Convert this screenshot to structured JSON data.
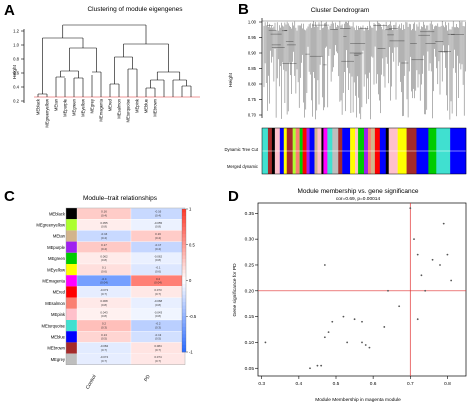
{
  "panels": {
    "A": {
      "letter": "A",
      "title": "Clustering of module eigengenes",
      "ylabel": "Height",
      "yticks": [
        "0.2",
        "0.4",
        "0.6",
        "0.8",
        "1.0",
        "1.2"
      ],
      "leaves": [
        "MEblack",
        "MEgreenyellow",
        "MEtan",
        "MEpurple",
        "MEgreen",
        "MEyellow",
        "MEgrey",
        "MEmagenta",
        "MEred",
        "MEsalmon",
        "MEturquoise",
        "MEpink",
        "MEblue",
        "MEbrown"
      ]
    },
    "B": {
      "letter": "B",
      "title": "Cluster Dendrogram",
      "ylabel": "Height",
      "yticks": [
        "0.70",
        "0.75",
        "0.80",
        "0.85",
        "0.90",
        "0.95",
        "1.00"
      ],
      "row1": "Dynamic Tree Cut",
      "row2": "Merged dynamic"
    },
    "C": {
      "letter": "C",
      "title": "Module–trait relationships",
      "columns": [
        "Control",
        "PD"
      ],
      "colorbar_ticks": [
        "1",
        "0.5",
        "0",
        "-0.5",
        "-1"
      ],
      "rows": [
        {
          "name": "MEblack",
          "color": "#000000",
          "c1": "0.16",
          "p1": "(0.4)",
          "c2": "-0.16",
          "p2": "(0.4)"
        },
        {
          "name": "MEgreenyellow",
          "color": "#adff2f",
          "c1": "0.055",
          "p1": "(0.8)",
          "c2": "-0.055",
          "p2": "(0.8)"
        },
        {
          "name": "MEtan",
          "color": "#d2b48c",
          "c1": "-0.16",
          "p1": "(0.4)",
          "c2": "0.16",
          "p2": "(0.4)"
        },
        {
          "name": "MEpurple",
          "color": "#a020f0",
          "c1": "0.17",
          "p1": "(0.4)",
          "c2": "-0.17",
          "p2": "(0.4)"
        },
        {
          "name": "MEgreen",
          "color": "#00cc00",
          "c1": "0.062",
          "p1": "(0.8)",
          "c2": "-0.062",
          "p2": "(0.8)"
        },
        {
          "name": "MEyellow",
          "color": "#ffff00",
          "c1": "0.1",
          "p1": "(0.6)",
          "c2": "-0.1",
          "p2": "(0.6)"
        },
        {
          "name": "MEmagenta",
          "color": "#ff00ff",
          "c1": "-0.4",
          "p1": "(0.04)",
          "c2": "0.4",
          "p2": "(0.04)"
        },
        {
          "name": "MEred",
          "color": "#ff0000",
          "c1": "-0.073",
          "p1": "(0.7)",
          "c2": "0.073",
          "p2": "(0.7)"
        },
        {
          "name": "MEsalmon",
          "color": "#fa8072",
          "c1": "0.068",
          "p1": "(0.8)",
          "c2": "-0.068",
          "p2": "(0.8)"
        },
        {
          "name": "MEpink",
          "color": "#ffc0cb",
          "c1": "0.043",
          "p1": "(0.8)",
          "c2": "-0.043",
          "p2": "(0.8)"
        },
        {
          "name": "MEturquoise",
          "color": "#40e0d0",
          "c1": "0.2",
          "p1": "(0.3)",
          "c2": "-0.2",
          "p2": "(0.3)"
        },
        {
          "name": "MEblue",
          "color": "#0000ff",
          "c1": "0.13",
          "p1": "(0.5)",
          "c2": "-0.13",
          "p2": "(0.5)"
        },
        {
          "name": "MEbrown",
          "color": "#a52a2a",
          "c1": "-0.084",
          "p1": "(0.7)",
          "c2": "0.084",
          "p2": "(0.7)"
        },
        {
          "name": "MEgrey",
          "color": "#bebebe",
          "c1": "-0.074",
          "p1": "(0.7)",
          "c2": "0.074",
          "p2": "(0.7)"
        }
      ]
    },
    "D": {
      "letter": "D",
      "title": "Module membership vs. gene significance",
      "subtitle": "cor=0.69, p=0.00014",
      "xlabel": "Module Membership in magenta module",
      "ylabel": "Gene significance for PD",
      "xticks": [
        "0.3",
        "0.4",
        "0.5",
        "0.6",
        "0.7",
        "0.8"
      ],
      "yticks": [
        "0.05",
        "0.10",
        "0.15",
        "0.20",
        "0.25",
        "0.30",
        "0.35"
      ]
    }
  },
  "chart_data": {
    "type": "scatter",
    "title": "Module membership vs. gene significance",
    "subtitle": "cor=0.69, p=0.00014",
    "xlabel": "Module Membership in magenta module",
    "ylabel": "Gene significance for PD",
    "xlim": [
      0.29,
      0.85
    ],
    "ylim": [
      0.035,
      0.37
    ],
    "reference_lines": {
      "x": 0.7,
      "y": 0.2
    },
    "points": [
      [
        0.31,
        0.1
      ],
      [
        0.43,
        0.05
      ],
      [
        0.45,
        0.055
      ],
      [
        0.46,
        0.055
      ],
      [
        0.47,
        0.25
      ],
      [
        0.47,
        0.11
      ],
      [
        0.48,
        0.12
      ],
      [
        0.49,
        0.14
      ],
      [
        0.52,
        0.15
      ],
      [
        0.53,
        0.1
      ],
      [
        0.55,
        0.145
      ],
      [
        0.57,
        0.14
      ],
      [
        0.57,
        0.1
      ],
      [
        0.58,
        0.095
      ],
      [
        0.59,
        0.09
      ],
      [
        0.63,
        0.13
      ],
      [
        0.64,
        0.2
      ],
      [
        0.67,
        0.17
      ],
      [
        0.7,
        0.36
      ],
      [
        0.71,
        0.3
      ],
      [
        0.72,
        0.27
      ],
      [
        0.73,
        0.23
      ],
      [
        0.72,
        0.145
      ],
      [
        0.74,
        0.2
      ],
      [
        0.76,
        0.26
      ],
      [
        0.78,
        0.25
      ],
      [
        0.79,
        0.33
      ],
      [
        0.8,
        0.27
      ],
      [
        0.81,
        0.22
      ]
    ]
  }
}
